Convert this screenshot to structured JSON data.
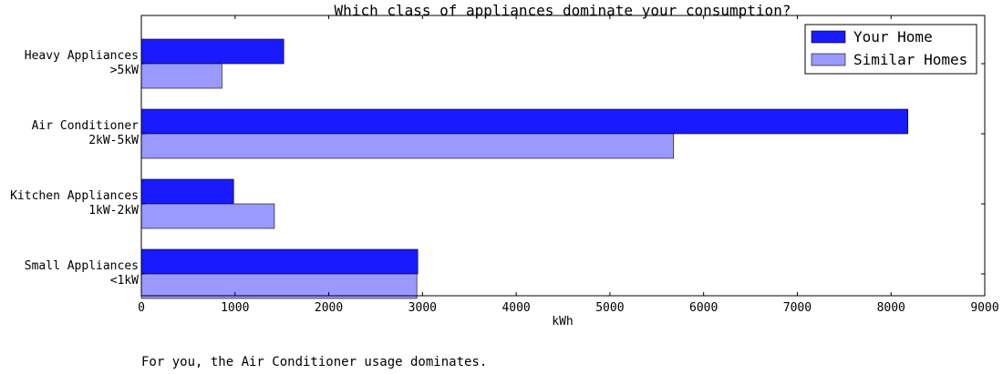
{
  "chart_data": {
    "type": "bar",
    "orientation": "horizontal",
    "title": "Which class of appliances dominate your consumption?",
    "xlabel": "kWh",
    "ylabel": "",
    "xlim": [
      0,
      9000
    ],
    "xticks": [
      0,
      1000,
      2000,
      3000,
      4000,
      5000,
      6000,
      7000,
      8000,
      9000
    ],
    "categories": [
      [
        "Heavy Appliances",
        ">5kW"
      ],
      [
        "Air Conditioner",
        "2kW-5kW"
      ],
      [
        "Kitchen Appliances",
        "1kW-2kW"
      ],
      [
        "Small Appliances",
        "<1kW"
      ]
    ],
    "series": [
      {
        "name": "Your Home",
        "color": "#1a1aff",
        "values": [
          1520,
          8180,
          985,
          2950
        ]
      },
      {
        "name": "Similar Homes",
        "color": "#9999ff",
        "values": [
          860,
          5680,
          1420,
          2940
        ]
      }
    ],
    "legend": "top-right",
    "grid": false
  },
  "caption": "For you, the Air Conditioner usage dominates."
}
